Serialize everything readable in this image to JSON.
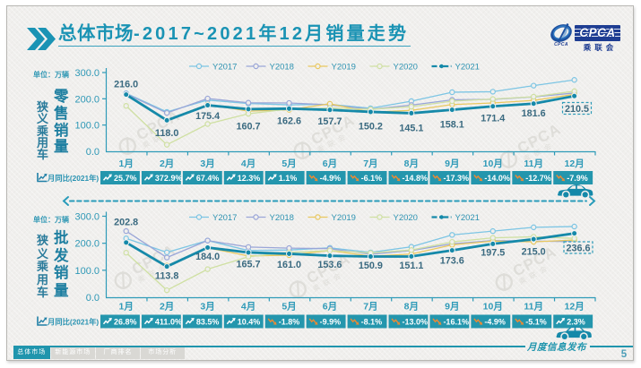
{
  "page": {
    "title_bold": "总体市场",
    "title_rest": "-2017~2021年12月销量走势"
  },
  "logo": {
    "cpca": "CPCA",
    "cn": "乘联会",
    "sub": "CPCA"
  },
  "watermark": {
    "text": "CPCA",
    "cn": "乘联会"
  },
  "colors": {
    "teal": "#2095ad",
    "axis": "#2e9bb8",
    "label_dark": "#3a6a80",
    "negative_orange": "#e98a35",
    "y2017": "#7cc5e4",
    "y2018": "#9aa6d8",
    "y2019": "#e9c85f",
    "y2020": "#cfe0a2",
    "y2021": "#1589a9"
  },
  "chart_data": [
    {
      "type": "line",
      "title": "狭义乘用车零售销量",
      "unit_label": "单位：万辆",
      "category_label": "狭义乘用车",
      "kind_label": "零售销量",
      "ylabel": "万辆",
      "ylim": [
        0,
        300
      ],
      "grid": false,
      "legend_position": "top",
      "y_ticks": [
        "300.0",
        "200.0",
        "100.0",
        "0.0"
      ],
      "y_tick_values": [
        300,
        200,
        100,
        0
      ],
      "categories": [
        "1月",
        "2月",
        "3月",
        "4月",
        "5月",
        "6月",
        "7月",
        "8月",
        "9月",
        "10月",
        "11月",
        "12月"
      ],
      "series": [
        {
          "name": "Y2017",
          "color": "#7cc5e4",
          "style": "solid-open",
          "values": [
            221,
            150,
            195,
            182,
            177,
            179,
            164,
            191,
            225,
            227,
            250,
            272
          ]
        },
        {
          "name": "Y2018",
          "color": "#9aa6d8",
          "style": "solid-open",
          "values": [
            219,
            146,
            201,
            185,
            184,
            177,
            160,
            176,
            196,
            198,
            207,
            222
          ]
        },
        {
          "name": "Y2019",
          "color": "#e9c85f",
          "style": "solid-open",
          "values": [
            216,
            119,
            178,
            153,
            158,
            181,
            149,
            156,
            178,
            184,
            194,
            217
          ]
        },
        {
          "name": "Y2020",
          "color": "#cfe0a2",
          "style": "solid-open",
          "values": [
            173,
            25,
            104,
            143,
            161,
            165,
            160,
            170,
            191,
            199,
            208,
            229
          ]
        },
        {
          "name": "Y2021",
          "color": "#1589a9",
          "style": "dashdot-filled",
          "values": [
            216.0,
            118.0,
            175.4,
            160.7,
            162.6,
            157.7,
            150.2,
            145.1,
            158.1,
            171.4,
            181.6,
            210.5
          ]
        }
      ],
      "value_labels": [
        "216.0",
        "118.0",
        "175.4",
        "160.7",
        "162.6",
        "157.7",
        "150.2",
        "145.1",
        "158.1",
        "171.4",
        "181.6"
      ],
      "boxed_label": "210.5",
      "yoy": {
        "label": "月同比(2021年)",
        "values": [
          "25.7%",
          "372.9%",
          "67.4%",
          "12.3%",
          "1.1%",
          "-4.9%",
          "-6.1%",
          "-14.8%",
          "-17.3%",
          "-14.0%",
          "-12.7%",
          "-7.9%"
        ]
      }
    },
    {
      "type": "line",
      "title": "狭义乘用车批发销量",
      "unit_label": "单位：万辆",
      "category_label": "狭义乘用车",
      "kind_label": "批发销量",
      "ylabel": "万辆",
      "ylim": [
        0,
        300
      ],
      "grid": false,
      "legend_position": "top",
      "y_ticks": [
        "300.0",
        "200.0",
        "100.0",
        "0.0"
      ],
      "y_tick_values": [
        300,
        200,
        100,
        0
      ],
      "categories": [
        "1月",
        "2月",
        "3月",
        "4月",
        "5月",
        "6月",
        "7月",
        "8月",
        "9月",
        "10月",
        "11月",
        "12月"
      ],
      "series": [
        {
          "name": "Y2017",
          "color": "#7cc5e4",
          "style": "solid-open",
          "values": [
            218,
            166,
            210,
            173,
            175,
            183,
            166,
            187,
            231,
            245,
            259,
            262
          ]
        },
        {
          "name": "Y2018",
          "color": "#9aa6d8",
          "style": "solid-open",
          "values": [
            245,
            147,
            210,
            186,
            182,
            180,
            159,
            173,
            198,
            210,
            208,
            206
          ]
        },
        {
          "name": "Y2019",
          "color": "#e9c85f",
          "style": "solid-open",
          "values": [
            202,
            117,
            183,
            153,
            156,
            173,
            152,
            160,
            194,
            208,
            205,
            212
          ]
        },
        {
          "name": "Y2020",
          "color": "#cfe0a2",
          "style": "solid-open",
          "values": [
            165,
            26,
            104,
            150,
            166,
            173,
            164,
            175,
            205,
            220,
            224,
            218
          ]
        },
        {
          "name": "Y2021",
          "color": "#1589a9",
          "style": "dashdot-filled",
          "values": [
            202.8,
            113.8,
            184.0,
            165.7,
            161.0,
            153.6,
            150.9,
            151.1,
            173.6,
            197.5,
            215.0,
            236.6
          ]
        }
      ],
      "value_labels": [
        "202.8",
        "113.8",
        "184.0",
        "165.7",
        "161.0",
        "153.6",
        "150.9",
        "151.1",
        "173.6",
        "197.5",
        "215.0"
      ],
      "boxed_label": "236.6",
      "yoy": {
        "label": "月同比(2021年)",
        "values": [
          "26.8%",
          "411.0%",
          "83.5%",
          "10.4%",
          "-1.8%",
          "-9.9%",
          "-8.1%",
          "-13.0%",
          "-16.1%",
          "-4.9%",
          "-5.1%",
          "2.3%"
        ]
      }
    }
  ],
  "footer": {
    "brand": "月度信息发布",
    "page": "5",
    "tabs": [
      {
        "label": "总体市场",
        "active": true
      },
      {
        "label": "新能源市场",
        "active": false
      },
      {
        "label": "厂商排名",
        "active": false
      },
      {
        "label": "市场分析",
        "active": false
      }
    ]
  }
}
